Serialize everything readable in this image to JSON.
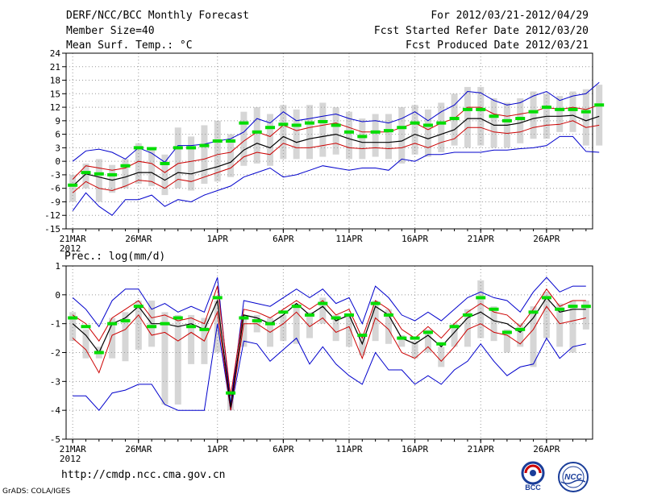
{
  "header": {
    "title": "DERF/NCC/BCC Monthly Forecast",
    "member_size": "Member Size=40",
    "variable": "Mean Surf. Temp.: °C",
    "period": "For 2012/03/21-2012/04/29",
    "started": "Fcst Started Refer Date 2012/03/20",
    "produced": "Fcst Produced Date 2012/03/21"
  },
  "footer": {
    "url": "http://cmdp.ncc.cma.gov.cn",
    "grads": "GrADS: COLA/IGES",
    "logo_bcc": "BCC",
    "logo_ncc": "NCC"
  },
  "colors": {
    "max_min": "#0000cc",
    "spread": "#cc0000",
    "mean": "#000000",
    "median": "#00dd00",
    "bar": "#d6d6d6",
    "grid": "#999999"
  },
  "chart_data": [
    {
      "type": "line",
      "title": "Mean Surf. Temp.: °C",
      "ylim": [
        -15,
        24
      ],
      "yticks": [
        -15,
        -12,
        -9,
        -6,
        -3,
        0,
        3,
        6,
        9,
        12,
        15,
        18,
        21,
        24
      ],
      "xticks": [
        {
          "day": 0,
          "label": "21MAR",
          "sub": "2012"
        },
        {
          "day": 5,
          "label": "26MAR"
        },
        {
          "day": 11,
          "label": "1APR"
        },
        {
          "day": 16,
          "label": "6APR"
        },
        {
          "day": 21,
          "label": "11APR"
        },
        {
          "day": 26,
          "label": "16APR"
        },
        {
          "day": 31,
          "label": "21APR"
        },
        {
          "day": 36,
          "label": "26APR"
        }
      ],
      "series": {
        "max": [
          0.0,
          2.3,
          2.7,
          2.0,
          0.5,
          3.0,
          1.8,
          -0.2,
          3.5,
          3.5,
          3.8,
          4.5,
          5.0,
          6.5,
          9.5,
          8.5,
          11.0,
          9.0,
          9.5,
          10.0,
          10.5,
          9.5,
          8.8,
          9.0,
          8.5,
          9.5,
          11.0,
          9.0,
          11.0,
          12.5,
          15.5,
          15.2,
          13.5,
          12.5,
          13.0,
          14.5,
          15.5,
          13.5,
          14.5,
          15.0,
          17.5
        ],
        "q3": [
          -4.0,
          -1.0,
          -1.5,
          -2.0,
          -1.5,
          0.0,
          -0.5,
          -2.5,
          -0.5,
          0.0,
          0.5,
          1.5,
          2.0,
          4.5,
          6.5,
          5.5,
          8.0,
          6.8,
          7.5,
          8.0,
          8.5,
          7.5,
          6.5,
          6.5,
          6.5,
          7.5,
          8.5,
          7.0,
          8.5,
          9.5,
          12.0,
          12.0,
          10.5,
          10.0,
          10.5,
          11.0,
          12.0,
          11.5,
          12.0,
          11.5,
          12.5
        ],
        "mean": [
          -5.5,
          -2.8,
          -3.5,
          -4.2,
          -3.5,
          -2.5,
          -2.5,
          -4.2,
          -2.5,
          -2.8,
          -2.0,
          -1.2,
          -0.2,
          2.5,
          4.0,
          3.0,
          5.5,
          4.2,
          5.0,
          5.5,
          6.0,
          5.0,
          4.2,
          4.2,
          4.2,
          4.5,
          6.0,
          5.0,
          6.0,
          7.0,
          9.5,
          9.5,
          8.0,
          8.0,
          8.5,
          9.5,
          10.0,
          10.0,
          10.2,
          9.0,
          10.0
        ],
        "q1": [
          -7.0,
          -4.5,
          -6.0,
          -6.5,
          -5.5,
          -4.2,
          -4.5,
          -6.0,
          -4.0,
          -4.5,
          -3.5,
          -2.5,
          -1.5,
          1.0,
          2.0,
          1.5,
          4.0,
          3.0,
          3.0,
          3.5,
          4.0,
          3.0,
          2.8,
          3.0,
          2.8,
          3.0,
          4.0,
          3.0,
          4.2,
          5.0,
          7.5,
          7.5,
          6.5,
          6.2,
          6.5,
          7.5,
          8.0,
          8.2,
          9.0,
          7.5,
          8.0
        ],
        "min": [
          -11.0,
          -7.0,
          -10.0,
          -12.0,
          -8.5,
          -8.5,
          -7.5,
          -10.0,
          -8.5,
          -9.0,
          -7.5,
          -6.5,
          -5.5,
          -3.5,
          -2.5,
          -1.5,
          -3.5,
          -3.0,
          -2.0,
          -1.0,
          -1.5,
          -2.0,
          -1.5,
          -1.5,
          -2.0,
          0.5,
          0.0,
          1.5,
          1.5,
          2.0,
          2.0,
          2.0,
          2.5,
          2.5,
          2.8,
          3.0,
          3.5,
          5.5,
          5.5,
          2.2,
          2.0
        ],
        "median": [
          -5.3,
          -2.5,
          -2.8,
          -3.0,
          -1.0,
          3.0,
          2.8,
          -0.5,
          3.0,
          3.0,
          3.5,
          4.5,
          4.5,
          8.5,
          6.5,
          7.5,
          8.2,
          8.0,
          8.5,
          8.8,
          8.0,
          6.5,
          5.5,
          6.5,
          6.8,
          7.5,
          8.5,
          8.0,
          8.5,
          9.5,
          11.5,
          11.5,
          10.0,
          9.0,
          9.5,
          11.0,
          12.0,
          11.5,
          11.5,
          11.0,
          12.5
        ],
        "bar_high": [
          -3.0,
          -0.5,
          0.5,
          -0.8,
          0.5,
          4.0,
          3.0,
          1.5,
          7.5,
          5.5,
          8.0,
          9.0,
          6.0,
          11.0,
          12.0,
          10.5,
          12.5,
          11.5,
          12.5,
          13.0,
          12.0,
          11.0,
          9.5,
          10.5,
          10.5,
          12.0,
          12.5,
          11.5,
          13.0,
          15.0,
          16.5,
          16.5,
          14.0,
          13.0,
          14.0,
          15.5,
          15.0,
          14.5,
          15.5,
          16.0,
          17.0
        ],
        "bar_low": [
          -9.0,
          -6.0,
          -9.0,
          -7.0,
          -6.0,
          -5.0,
          -5.5,
          -7.5,
          -6.0,
          -6.5,
          -5.0,
          -4.5,
          -3.5,
          -1.0,
          -0.5,
          -1.0,
          0.5,
          0.5,
          0.5,
          1.0,
          1.5,
          0.5,
          0.5,
          1.0,
          0.5,
          -0.5,
          1.5,
          1.0,
          2.0,
          3.5,
          3.0,
          3.5,
          3.0,
          3.0,
          4.0,
          5.0,
          5.0,
          6.5,
          6.5,
          3.5,
          3.5
        ]
      }
    },
    {
      "type": "line",
      "title": "Prec.: log(mm/d)",
      "ylim": [
        -5,
        1
      ],
      "yticks": [
        -5,
        -4,
        -3,
        -2,
        -1,
        0,
        1
      ],
      "xticks": [
        {
          "day": 0,
          "label": "21MAR",
          "sub": "2012"
        },
        {
          "day": 5,
          "label": "26MAR"
        },
        {
          "day": 11,
          "label": "1APR"
        },
        {
          "day": 16,
          "label": "6APR"
        },
        {
          "day": 21,
          "label": "11APR"
        },
        {
          "day": 26,
          "label": "16APR"
        },
        {
          "day": 31,
          "label": "21APR"
        },
        {
          "day": 36,
          "label": "26APR"
        }
      ],
      "series": {
        "max": [
          -0.1,
          -0.5,
          -1.1,
          -0.2,
          0.2,
          0.2,
          -0.5,
          -0.3,
          -0.6,
          -0.4,
          -0.6,
          0.6,
          -3.8,
          -0.2,
          -0.3,
          -0.4,
          -0.1,
          0.2,
          -0.1,
          0.2,
          -0.3,
          -0.1,
          -1.0,
          0.3,
          -0.1,
          -0.7,
          -0.9,
          -0.6,
          -0.9,
          -0.5,
          -0.1,
          0.1,
          -0.1,
          -0.2,
          -0.6,
          0.1,
          0.6,
          0.1,
          0.3,
          0.3
        ],
        "q3": [
          -0.7,
          -1.0,
          -1.6,
          -0.8,
          -0.5,
          -0.2,
          -0.8,
          -0.7,
          -0.9,
          -0.8,
          -1.0,
          0.3,
          -3.5,
          -0.5,
          -0.6,
          -0.8,
          -0.5,
          -0.2,
          -0.5,
          -0.2,
          -0.7,
          -0.5,
          -1.5,
          -0.2,
          -0.5,
          -1.2,
          -1.5,
          -1.1,
          -1.5,
          -1.0,
          -0.6,
          -0.3,
          -0.6,
          -0.7,
          -1.1,
          -0.5,
          0.2,
          -0.4,
          -0.2,
          -0.2
        ],
        "mean": [
          -1.0,
          -1.4,
          -2.0,
          -1.0,
          -0.8,
          -0.4,
          -1.0,
          -1.0,
          -1.1,
          -1.0,
          -1.2,
          -0.2,
          -3.9,
          -0.7,
          -0.8,
          -1.0,
          -0.7,
          -0.3,
          -0.7,
          -0.4,
          -0.9,
          -0.7,
          -1.7,
          -0.4,
          -0.7,
          -1.5,
          -1.7,
          -1.4,
          -1.8,
          -1.3,
          -0.8,
          -0.6,
          -0.9,
          -1.0,
          -1.3,
          -0.8,
          -0.1,
          -0.6,
          -0.5,
          -0.5
        ],
        "q1": [
          -1.5,
          -1.9,
          -2.7,
          -1.4,
          -1.2,
          -0.7,
          -1.4,
          -1.3,
          -1.6,
          -1.3,
          -1.6,
          -0.6,
          -4.0,
          -1.0,
          -1.0,
          -1.3,
          -1.0,
          -0.6,
          -1.1,
          -0.8,
          -1.3,
          -1.1,
          -2.2,
          -0.8,
          -1.2,
          -2.0,
          -2.2,
          -1.8,
          -2.3,
          -1.8,
          -1.2,
          -1.0,
          -1.3,
          -1.4,
          -1.7,
          -1.2,
          -0.4,
          -1.0,
          -0.9,
          -0.8
        ],
        "min": [
          -3.5,
          -3.5,
          -4.0,
          -3.4,
          -3.3,
          -3.1,
          -3.1,
          -3.8,
          -4.0,
          -4.0,
          -4.0,
          -1.0,
          -4.0,
          -1.6,
          -1.7,
          -2.3,
          -1.9,
          -1.5,
          -2.4,
          -1.8,
          -2.4,
          -2.8,
          -3.1,
          -2.0,
          -2.6,
          -2.6,
          -3.1,
          -2.8,
          -3.1,
          -2.6,
          -2.3,
          -1.7,
          -2.3,
          -2.8,
          -2.5,
          -2.4,
          -1.5,
          -2.2,
          -1.8,
          -1.7
        ],
        "median": [
          -0.8,
          -1.1,
          -2.0,
          -1.0,
          -0.9,
          -0.4,
          -1.1,
          -1.0,
          -0.8,
          -1.1,
          -1.2,
          -0.1,
          -3.4,
          -0.8,
          -0.9,
          -1.0,
          -0.6,
          -0.4,
          -0.7,
          -0.3,
          -0.8,
          -0.7,
          -1.4,
          -0.3,
          -0.7,
          -1.5,
          -1.5,
          -1.3,
          -1.7,
          -1.1,
          -0.7,
          -0.1,
          -0.5,
          -1.3,
          -1.2,
          -0.6,
          -0.1,
          -0.5,
          -0.4,
          -0.4
        ],
        "bar_high": [
          -0.6,
          -1.2,
          -1.8,
          -0.8,
          -0.6,
          -0.2,
          -0.2,
          -0.6,
          -0.7,
          -0.7,
          -0.8,
          -0.2,
          -3.4,
          -0.7,
          -0.7,
          -0.8,
          -0.7,
          -0.3,
          -0.6,
          -0.1,
          -0.7,
          -0.7,
          -1.4,
          -0.2,
          -0.5,
          -1.4,
          -1.6,
          -1.2,
          -1.8,
          -1.0,
          -0.5,
          0.5,
          -0.4,
          -1.2,
          -1.0,
          -0.4,
          0.1,
          -0.3,
          -0.2,
          -0.2
        ],
        "bar_low": [
          -1.6,
          -2.2,
          -2.2,
          -2.2,
          -2.3,
          -1.9,
          -1.8,
          -3.8,
          -3.8,
          -2.4,
          -2.4,
          -2.0,
          -4.0,
          -1.8,
          -1.3,
          -1.8,
          -1.6,
          -1.7,
          -1.5,
          -1.0,
          -1.6,
          -1.8,
          -2.1,
          -1.6,
          -1.7,
          -1.8,
          -2.2,
          -2.0,
          -2.5,
          -1.8,
          -1.8,
          -1.5,
          -1.6,
          -2.0,
          -1.8,
          -2.5,
          -1.5,
          -1.8,
          -2.0,
          -1.2
        ]
      }
    }
  ]
}
